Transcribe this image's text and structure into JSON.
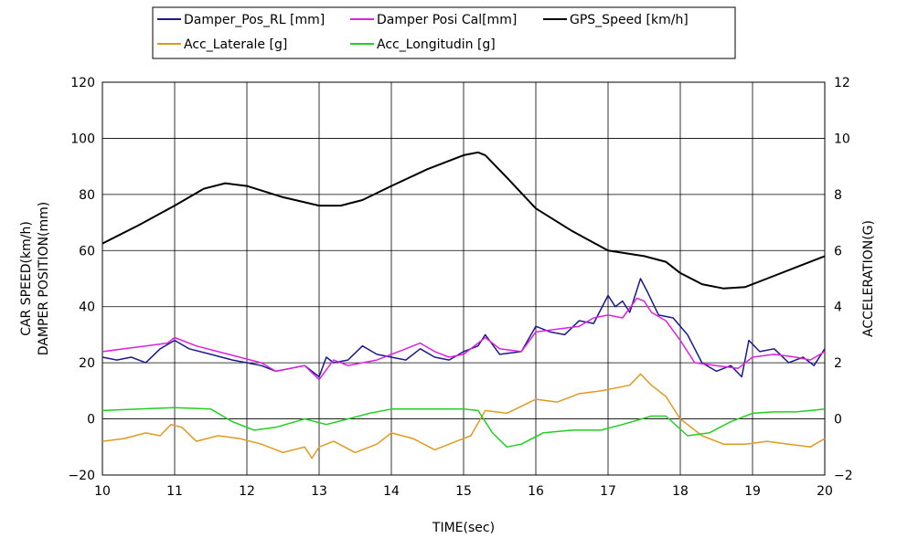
{
  "chart_data": {
    "type": "line",
    "xlabel": "TIME(sec)",
    "ylabel_left_line1": "CAR SPEED(km/h)",
    "ylabel_left_line2": "DAMPER POSITION(mm)",
    "ylabel_right": "ACCELERATION(G)",
    "xlim": [
      10,
      20
    ],
    "ylim_left": [
      -20,
      120
    ],
    "ylim_right": [
      -2,
      12
    ],
    "x_ticks": [
      "10",
      "11",
      "12",
      "13",
      "14",
      "15",
      "16",
      "17",
      "18",
      "19",
      "20"
    ],
    "y_left_ticks": [
      "120",
      "100",
      "80",
      "60",
      "40",
      "20",
      "0",
      "−20"
    ],
    "y_right_ticks": [
      "12",
      "10",
      "8",
      "6",
      "4",
      "2",
      "0",
      "−2"
    ],
    "grid": true,
    "legend_position": "top",
    "series": [
      {
        "name": "Damper_Pos_RL [mm]",
        "axis": "left",
        "color": "#1a1a8c",
        "x": [
          10,
          10.2,
          10.4,
          10.6,
          10.8,
          11,
          11.2,
          11.5,
          11.8,
          12,
          12.2,
          12.4,
          12.6,
          12.8,
          12.9,
          13,
          13.1,
          13.2,
          13.4,
          13.6,
          13.8,
          14,
          14.2,
          14.4,
          14.6,
          14.8,
          15,
          15.2,
          15.3,
          15.5,
          15.8,
          16,
          16.2,
          16.4,
          16.6,
          16.8,
          17,
          17.1,
          17.2,
          17.3,
          17.45,
          17.55,
          17.7,
          17.9,
          18.1,
          18.3,
          18.5,
          18.7,
          18.85,
          18.95,
          19.1,
          19.3,
          19.5,
          19.7,
          19.85,
          20
        ],
        "values": [
          22,
          21,
          22,
          20,
          25,
          28,
          25,
          23,
          21,
          20,
          19,
          17,
          18,
          19,
          17,
          15,
          22,
          20,
          21,
          26,
          23,
          22,
          21,
          25,
          22,
          21,
          24,
          26,
          30,
          23,
          24,
          33,
          31,
          30,
          35,
          34,
          44,
          40,
          42,
          38,
          50,
          45,
          37,
          36,
          30,
          20,
          17,
          19,
          15,
          28,
          24,
          25,
          20,
          22,
          19,
          25
        ]
      },
      {
        "name": "Damper Posi Cal[mm]",
        "axis": "left",
        "color": "#e020e0",
        "x": [
          10,
          10.3,
          10.6,
          10.9,
          11,
          11.3,
          11.6,
          11.9,
          12.2,
          12.4,
          12.6,
          12.8,
          13,
          13.2,
          13.4,
          13.6,
          13.8,
          14,
          14.2,
          14.4,
          14.6,
          14.8,
          15,
          15.3,
          15.5,
          15.8,
          16,
          16.3,
          16.6,
          16.8,
          17,
          17.2,
          17.4,
          17.5,
          17.6,
          17.8,
          18,
          18.2,
          18.5,
          18.8,
          19,
          19.3,
          19.6,
          19.8,
          20
        ],
        "values": [
          24,
          25,
          26,
          27,
          29,
          26,
          24,
          22,
          20,
          17,
          18,
          19,
          14,
          21,
          19,
          20,
          21,
          23,
          25,
          27,
          24,
          22,
          23,
          29,
          25,
          24,
          31,
          32,
          33,
          36,
          37,
          36,
          43,
          42,
          38,
          35,
          28,
          20,
          19,
          18,
          22,
          23,
          22,
          21,
          24
        ]
      },
      {
        "name": "GPS_Speed [km/h]",
        "axis": "left",
        "color": "#000000",
        "x": [
          10,
          10.5,
          11,
          11.4,
          11.7,
          12,
          12.5,
          13,
          13.3,
          13.6,
          14,
          14.5,
          15,
          15.2,
          15.3,
          15.6,
          16,
          16.5,
          17,
          17.5,
          17.8,
          18,
          18.3,
          18.6,
          18.9,
          19.2,
          19.6,
          20
        ],
        "values": [
          62.5,
          69,
          76,
          82,
          84,
          83,
          79,
          76,
          76,
          78,
          83,
          89,
          94,
          95,
          94,
          86,
          75,
          67,
          60,
          58,
          56,
          52,
          48,
          46.5,
          47,
          50,
          54,
          58
        ]
      },
      {
        "name": "Acc_Laterale [g]",
        "axis": "right",
        "color": "#e09a20",
        "x": [
          10,
          10.3,
          10.6,
          10.8,
          10.95,
          11.1,
          11.3,
          11.6,
          11.9,
          12.2,
          12.5,
          12.8,
          12.9,
          13,
          13.2,
          13.5,
          13.8,
          14,
          14.3,
          14.6,
          14.9,
          15.1,
          15.3,
          15.6,
          16,
          16.3,
          16.6,
          16.9,
          17.1,
          17.3,
          17.45,
          17.6,
          17.8,
          18,
          18.3,
          18.6,
          18.9,
          19.2,
          19.5,
          19.8,
          20
        ],
        "values": [
          -0.8,
          -0.7,
          -0.5,
          -0.6,
          -0.2,
          -0.3,
          -0.8,
          -0.6,
          -0.7,
          -0.9,
          -1.2,
          -1.0,
          -1.4,
          -1.0,
          -0.8,
          -1.2,
          -0.9,
          -0.5,
          -0.7,
          -1.1,
          -0.8,
          -0.6,
          0.3,
          0.2,
          0.7,
          0.6,
          0.9,
          1.0,
          1.1,
          1.2,
          1.6,
          1.2,
          0.8,
          0.0,
          -0.6,
          -0.9,
          -0.9,
          -0.8,
          -0.9,
          -1.0,
          -0.7
        ]
      },
      {
        "name": "Acc_Longitudin [g]",
        "axis": "right",
        "color": "#20d020",
        "x": [
          10,
          10.5,
          11,
          11.5,
          11.8,
          12.1,
          12.4,
          12.8,
          13.1,
          13.4,
          13.7,
          14,
          14.5,
          15,
          15.2,
          15.4,
          15.6,
          15.8,
          16.1,
          16.5,
          16.9,
          17.2,
          17.6,
          17.8,
          18.1,
          18.4,
          18.7,
          19,
          19.3,
          19.6,
          20
        ],
        "values": [
          0.3,
          0.35,
          0.4,
          0.35,
          -0.1,
          -0.4,
          -0.3,
          0.0,
          -0.2,
          0.0,
          0.2,
          0.35,
          0.35,
          0.35,
          0.3,
          -0.5,
          -1.0,
          -0.9,
          -0.5,
          -0.4,
          -0.4,
          -0.2,
          0.1,
          0.1,
          -0.6,
          -0.5,
          -0.1,
          0.2,
          0.25,
          0.25,
          0.35
        ]
      }
    ]
  }
}
